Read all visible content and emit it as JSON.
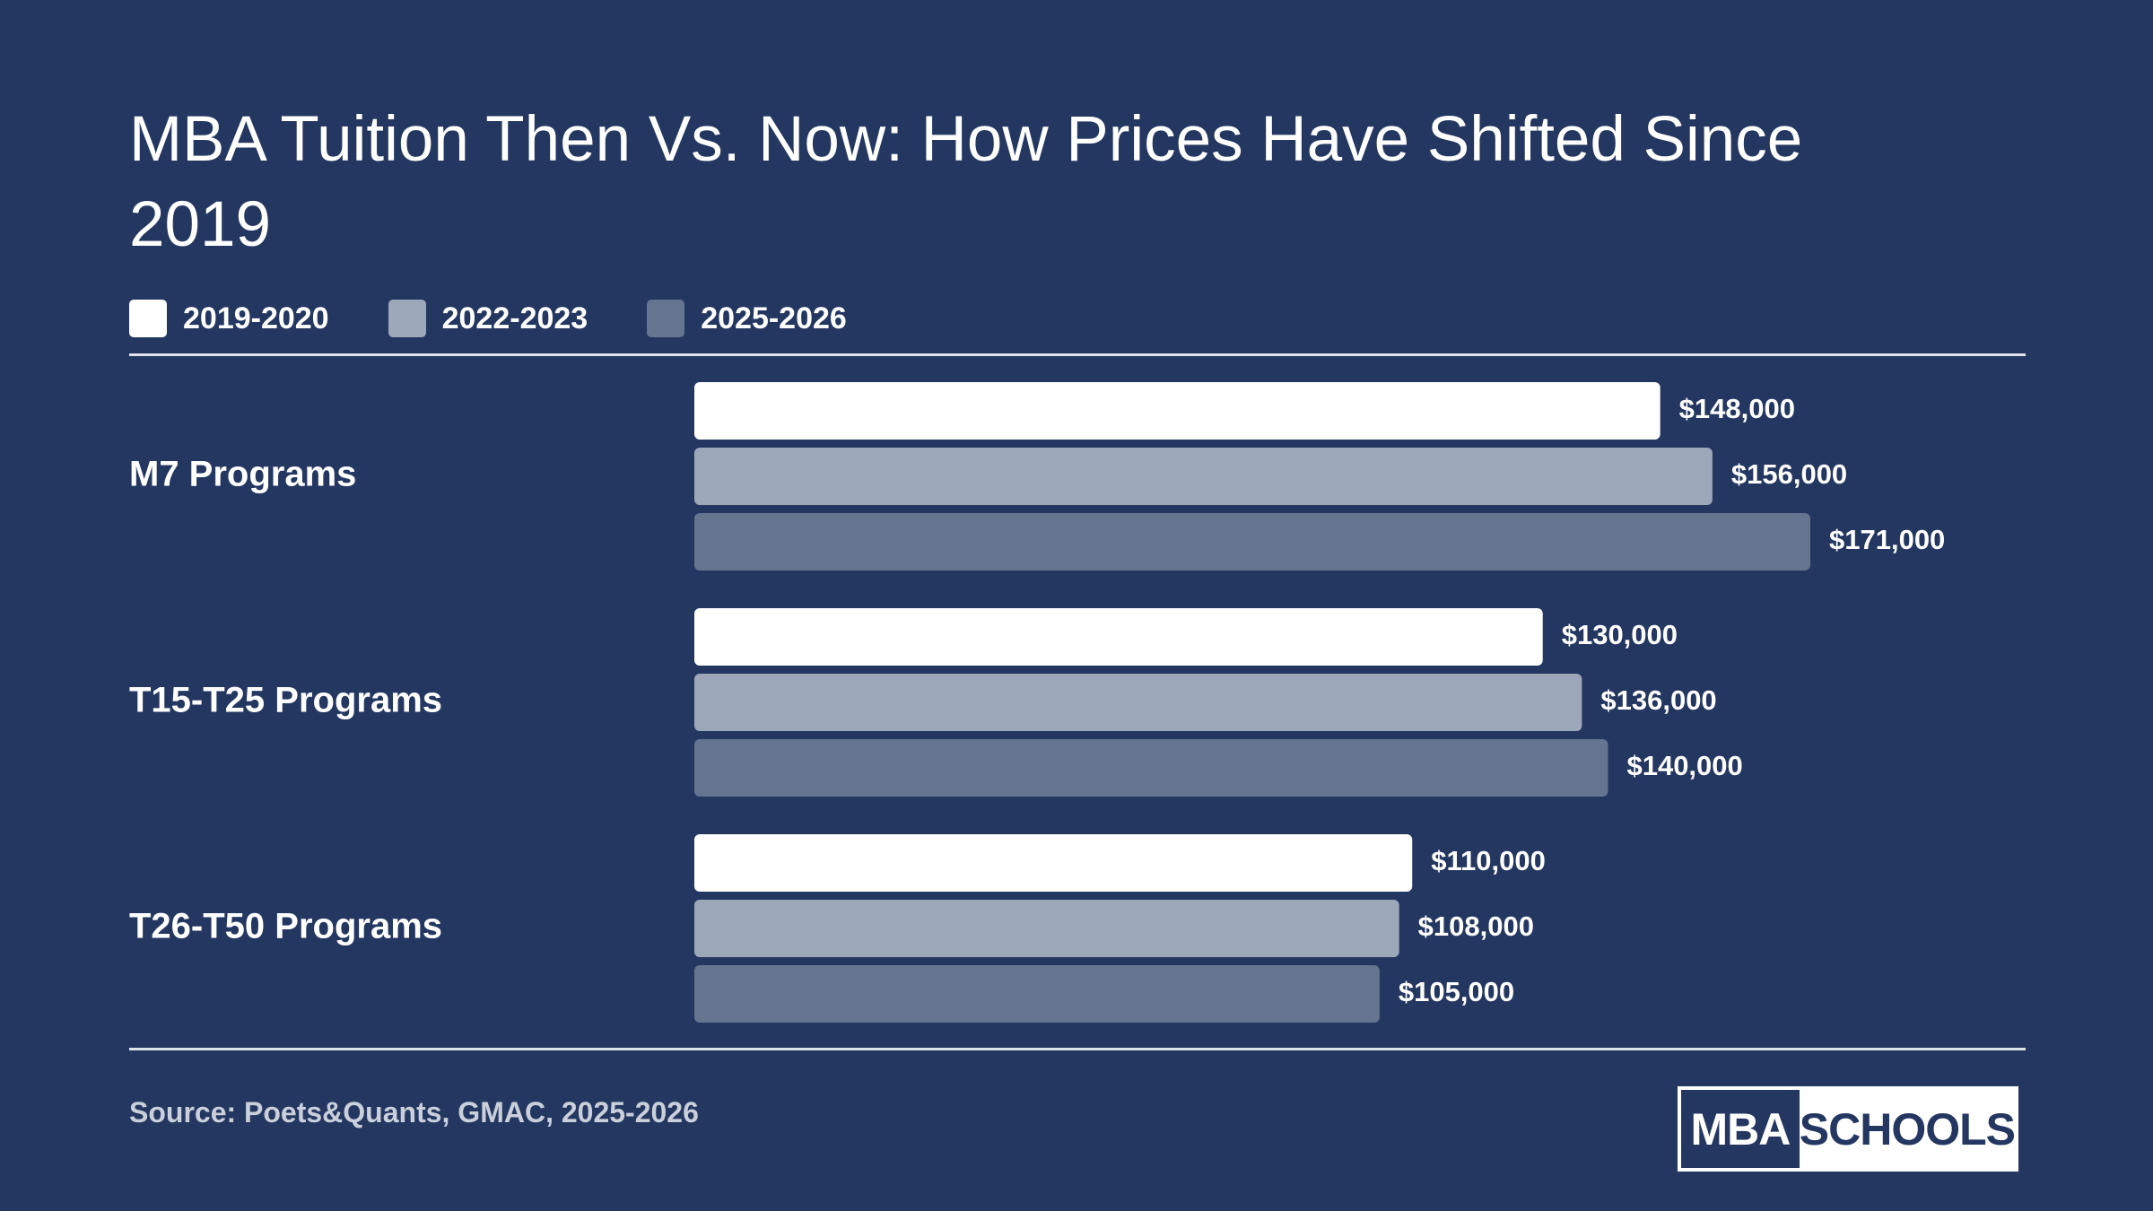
{
  "title": "MBA Tuition Then Vs. Now: How Prices Have Shifted Since 2019",
  "source": "Source: Poets&Quants, GMAC, 2025-2026",
  "logo": {
    "left_text": "MBA",
    "right_text": "SCHOOLS"
  },
  "colors": {
    "background": "#243761",
    "series_2019_2020": "#ffffff",
    "series_2022_2023": "#9da7ba",
    "series_2025_2026": "#65748f"
  },
  "chart_data": {
    "type": "bar",
    "orientation": "horizontal",
    "legend_position": "top-left",
    "grid": false,
    "categories": [
      "M7 Programs",
      "T15-T25 Programs",
      "T26-T50 Programs"
    ],
    "series": [
      {
        "name": "2019-2020",
        "color": "#ffffff",
        "values": [
          148000,
          130000,
          110000
        ],
        "labels": [
          "$148,000",
          "$130,000",
          "$110,000"
        ]
      },
      {
        "name": "2022-2023",
        "color": "#9da7ba",
        "values": [
          156000,
          136000,
          108000
        ],
        "labels": [
          "$156,000",
          "$136,000",
          "$108,000"
        ]
      },
      {
        "name": "2025-2026",
        "color": "#65748f",
        "values": [
          171000,
          140000,
          105000
        ],
        "labels": [
          "$171,000",
          "$140,000",
          "$105,000"
        ]
      }
    ],
    "xlim": [
      0,
      171000
    ]
  }
}
